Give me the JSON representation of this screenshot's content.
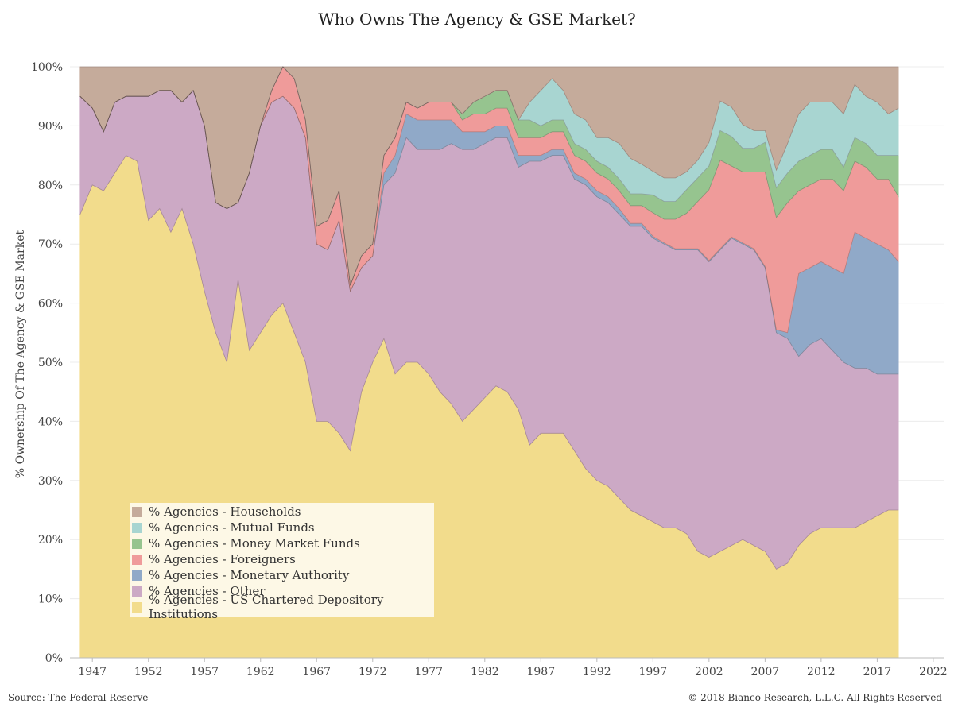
{
  "chart_data": {
    "type": "area",
    "stacked": true,
    "title": "Who Owns The Agency & GSE Market?",
    "ylabel": "% Ownership Of The Agency & GSE Market",
    "xlabel": "",
    "xlim": [
      1945,
      2023
    ],
    "ylim": [
      0,
      100
    ],
    "x_ticks": [
      "1947",
      "1952",
      "1957",
      "1962",
      "1967",
      "1972",
      "1977",
      "1982",
      "1987",
      "1992",
      "1997",
      "2002",
      "2007",
      "2012",
      "2017",
      "2022"
    ],
    "y_ticks": [
      "0%",
      "10%",
      "20%",
      "30%",
      "40%",
      "50%",
      "60%",
      "70%",
      "80%",
      "90%",
      "100%"
    ],
    "grid": true,
    "legend_position": "bottom-left",
    "x": [
      1945.9,
      1947,
      1948,
      1949,
      1950,
      1951,
      1952,
      1953,
      1954,
      1955,
      1956,
      1957,
      1958,
      1959,
      1960,
      1961,
      1962,
      1963,
      1964,
      1965,
      1966,
      1967,
      1968,
      1969,
      1970,
      1971,
      1972,
      1973,
      1974,
      1975,
      1976,
      1977,
      1978,
      1979,
      1980,
      1981,
      1982,
      1983,
      1984,
      1985,
      1986,
      1987,
      1988,
      1989,
      1990,
      1991,
      1992,
      1993,
      1994,
      1995,
      1996,
      1997,
      1998,
      1999,
      2000,
      2001,
      2002,
      2003,
      2004,
      2005,
      2006,
      2007,
      2008,
      2009,
      2010,
      2011,
      2012,
      2013,
      2014,
      2015,
      2016,
      2017,
      2018,
      2018.9
    ],
    "series": [
      {
        "name": "% Agencies - US Chartered Depository Institutions",
        "color": "#f2dc8c",
        "values": [
          75,
          80,
          79,
          82,
          85,
          84,
          74,
          76,
          72,
          76,
          70,
          62,
          55,
          50,
          64,
          52,
          55,
          58,
          60,
          55,
          50,
          40,
          40,
          38,
          35,
          45,
          50,
          54,
          48,
          50,
          50,
          48,
          45,
          43,
          40,
          42,
          44,
          46,
          45,
          42,
          36,
          38,
          38,
          38,
          35,
          32,
          30,
          29,
          27,
          25,
          24,
          23,
          22,
          22,
          21,
          18,
          17,
          18,
          19,
          20,
          19,
          18,
          15,
          16,
          19,
          21,
          22,
          22,
          22,
          22,
          23,
          24,
          25,
          25
        ]
      },
      {
        "name": "% Agencies - Other",
        "color": "#cca9c5",
        "values": [
          20,
          13,
          10,
          12,
          10,
          11,
          21,
          20,
          24,
          18,
          26,
          28,
          22,
          26,
          13,
          30,
          35,
          36,
          35,
          38,
          38,
          30,
          29,
          36,
          27,
          21,
          18,
          26,
          34,
          38,
          36,
          38,
          41,
          44,
          46,
          44,
          43,
          42,
          43,
          41,
          48,
          46,
          47,
          47,
          46,
          48,
          48,
          48,
          48,
          48,
          49,
          48,
          48,
          47,
          48,
          51,
          50,
          51,
          52,
          50,
          50,
          48,
          40,
          38,
          32,
          32,
          32,
          30,
          28,
          27,
          26,
          24,
          23,
          23
        ]
      },
      {
        "name": "% Agencies - Monetary Authority",
        "color": "#90a9c8",
        "values": [
          0,
          0,
          0,
          0,
          0,
          0,
          0,
          0,
          0,
          0,
          0,
          0,
          0,
          0,
          0,
          0,
          0,
          0,
          0,
          0,
          0,
          0,
          0,
          0,
          0,
          0,
          0,
          2,
          3,
          4,
          5,
          5,
          5,
          4,
          3,
          3,
          2,
          2,
          2,
          2,
          1,
          1,
          1,
          1,
          1,
          1,
          1,
          1,
          1,
          0.5,
          0.5,
          0.3,
          0.2,
          0.2,
          0.2,
          0.2,
          0.2,
          0.2,
          0.2,
          0.2,
          0.2,
          0.2,
          0.5,
          1,
          14,
          13,
          13,
          14,
          15,
          23,
          22,
          22,
          21,
          19
        ]
      },
      {
        "name": "% Agencies - Foreigners",
        "color": "#ef9b9a",
        "values": [
          0,
          0,
          0,
          0,
          0,
          0,
          0,
          0,
          0,
          0,
          0,
          0,
          0,
          0,
          0,
          0,
          0,
          2,
          5,
          5,
          3,
          3,
          5,
          5,
          1,
          2,
          2,
          3,
          3,
          2,
          2,
          3,
          3,
          3,
          2,
          3,
          3,
          3,
          3,
          3,
          3,
          3,
          3,
          3,
          3,
          3,
          3,
          3,
          3,
          3,
          3,
          4,
          4,
          5,
          6,
          8,
          12,
          15,
          12,
          12,
          13,
          16,
          19,
          22,
          14,
          14,
          14,
          15,
          14,
          12,
          12,
          11,
          12,
          11
        ]
      },
      {
        "name": "% Agencies - Money Market Funds",
        "color": "#96c48f",
        "values": [
          0,
          0,
          0,
          0,
          0,
          0,
          0,
          0,
          0,
          0,
          0,
          0,
          0,
          0,
          0,
          0,
          0,
          0,
          0,
          0,
          0,
          0,
          0,
          0,
          0,
          0,
          0,
          0,
          0,
          0,
          0,
          0,
          0,
          0,
          1,
          2,
          3,
          3,
          3,
          3,
          3,
          2,
          2,
          2,
          2,
          2,
          2,
          2,
          2,
          2,
          2,
          3,
          3,
          3,
          4,
          4,
          4,
          5,
          5,
          4,
          4,
          5,
          5,
          5,
          5,
          5,
          5,
          5,
          4,
          4,
          4,
          4,
          4,
          7
        ]
      },
      {
        "name": "% Agencies - Mutual Funds",
        "color": "#a8d5d1",
        "values": [
          0,
          0,
          0,
          0,
          0,
          0,
          0,
          0,
          0,
          0,
          0,
          0,
          0,
          0,
          0,
          0,
          0,
          0,
          0,
          0,
          0,
          0,
          0,
          0,
          0,
          0,
          0,
          0,
          0,
          0,
          0,
          0,
          0,
          0,
          0,
          0,
          0,
          0,
          0,
          0,
          3,
          6,
          7,
          5,
          5,
          5,
          4,
          5,
          6,
          6,
          5,
          4,
          4,
          4,
          3,
          3,
          4,
          5,
          5,
          4,
          3,
          2,
          3,
          5,
          8,
          9,
          8,
          8,
          9,
          9,
          8,
          9,
          7,
          8
        ]
      },
      {
        "name": "% Agencies - Households",
        "color": "#c5ab9b",
        "values": [
          5,
          7,
          11,
          6,
          5,
          5,
          5,
          4,
          4,
          6,
          4,
          10,
          23,
          24,
          23,
          18,
          10,
          4,
          0,
          2,
          9,
          27,
          26,
          21,
          37,
          32,
          30,
          15,
          12,
          6,
          7,
          6,
          6,
          6,
          8,
          6,
          5,
          4,
          4,
          9,
          6,
          4,
          2,
          4,
          8,
          9,
          12,
          12,
          13,
          15.5,
          16.5,
          17.7,
          18.8,
          18.8,
          17.8,
          15.8,
          12.8,
          5.8,
          6.8,
          9.8,
          10.8,
          10.8,
          17.5,
          13,
          8,
          6,
          6,
          6,
          8,
          3,
          5,
          6,
          8,
          7
        ]
      }
    ]
  },
  "footer": {
    "source": "Source: The Federal Reserve",
    "copyright": "© 2018 Bianco Research, L.L.C. All Rights Reserved"
  }
}
